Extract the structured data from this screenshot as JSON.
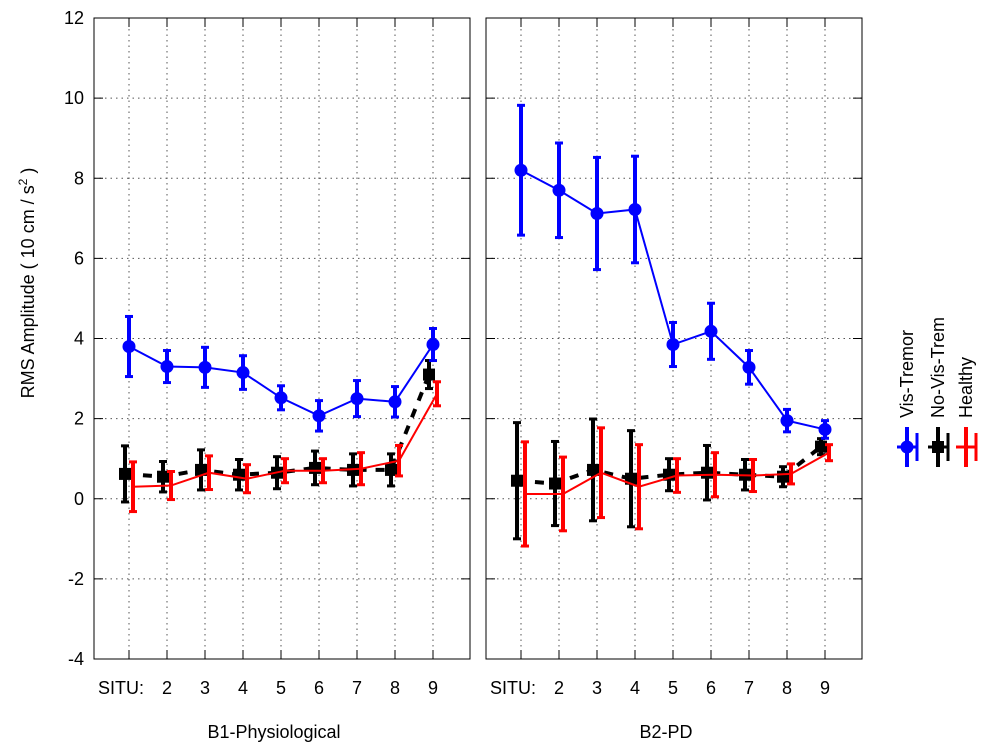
{
  "chart_data": {
    "type": "line",
    "ylabel": "RMS Amplitude ( 10 cm / s",
    "ylabel_sup": "2",
    "ylabel_tail": " )",
    "ylim": [
      -4,
      12
    ],
    "yticks": [
      -4,
      -2,
      0,
      2,
      4,
      6,
      8,
      10,
      12
    ],
    "grid": true,
    "legend": {
      "placement": "right, rotated vertical",
      "entries": [
        "Vis-Tremor",
        "No-Vis-Trem",
        "Healthy"
      ]
    },
    "x_tick_labels": [
      "SITU:",
      "2",
      "3",
      "4",
      "5",
      "6",
      "7",
      "8",
      "9"
    ],
    "panels": [
      {
        "title": "B1-Physiological",
        "series": [
          {
            "name": "Vis-Tremor",
            "color": "#0000ff",
            "marker": "circle",
            "line": "solid",
            "x": [
              1,
              2,
              3,
              4,
              5,
              6,
              7,
              8,
              9
            ],
            "y": [
              3.8,
              3.3,
              3.28,
              3.15,
              2.52,
              2.07,
              2.5,
              2.42,
              3.85
            ],
            "err": [
              0.75,
              0.4,
              0.5,
              0.42,
              0.3,
              0.38,
              0.45,
              0.38,
              0.4
            ]
          },
          {
            "name": "No-Vis-Trem",
            "color": "#000000",
            "marker": "square",
            "line": "dashed",
            "x": [
              1,
              2,
              3,
              4,
              5,
              6,
              7,
              8,
              9
            ],
            "y": [
              0.62,
              0.55,
              0.72,
              0.6,
              0.65,
              0.77,
              0.72,
              0.72,
              3.1
            ],
            "err": [
              0.7,
              0.38,
              0.5,
              0.38,
              0.4,
              0.42,
              0.4,
              0.4,
              0.35
            ]
          },
          {
            "name": "Healthy",
            "color": "#ff0000",
            "marker": "none",
            "line": "solid",
            "x": [
              1,
              2,
              3,
              4,
              5,
              6,
              7,
              8,
              9
            ],
            "y": [
              0.3,
              0.33,
              0.65,
              0.5,
              0.7,
              0.7,
              0.75,
              0.95,
              2.62
            ],
            "err": [
              0.62,
              0.35,
              0.42,
              0.35,
              0.3,
              0.3,
              0.4,
              0.38,
              0.3
            ]
          }
        ]
      },
      {
        "title": "B2-PD",
        "series": [
          {
            "name": "Vis-Tremor",
            "color": "#0000ff",
            "marker": "circle",
            "line": "solid",
            "x": [
              1,
              2,
              3,
              4,
              5,
              6,
              7,
              8,
              9
            ],
            "y": [
              8.2,
              7.7,
              7.12,
              7.22,
              3.85,
              4.18,
              3.28,
              1.95,
              1.73
            ],
            "err": [
              1.62,
              1.18,
              1.4,
              1.33,
              0.55,
              0.7,
              0.42,
              0.28,
              0.22
            ]
          },
          {
            "name": "No-Vis-Trem",
            "color": "#000000",
            "marker": "square",
            "line": "dashed",
            "x": [
              1,
              2,
              3,
              4,
              5,
              6,
              7,
              8,
              9
            ],
            "y": [
              0.45,
              0.38,
              0.72,
              0.5,
              0.6,
              0.65,
              0.6,
              0.55,
              1.3
            ],
            "err": [
              1.45,
              1.05,
              1.27,
              1.2,
              0.4,
              0.68,
              0.38,
              0.25,
              0.2
            ]
          },
          {
            "name": "Healthy",
            "color": "#ff0000",
            "marker": "none",
            "line": "solid",
            "x": [
              1,
              2,
              3,
              4,
              5,
              6,
              7,
              8,
              9
            ],
            "y": [
              0.12,
              0.12,
              0.65,
              0.3,
              0.58,
              0.6,
              0.58,
              0.62,
              1.15
            ],
            "err": [
              1.3,
              0.92,
              1.12,
              1.05,
              0.42,
              0.55,
              0.4,
              0.25,
              0.2
            ]
          }
        ]
      }
    ]
  }
}
